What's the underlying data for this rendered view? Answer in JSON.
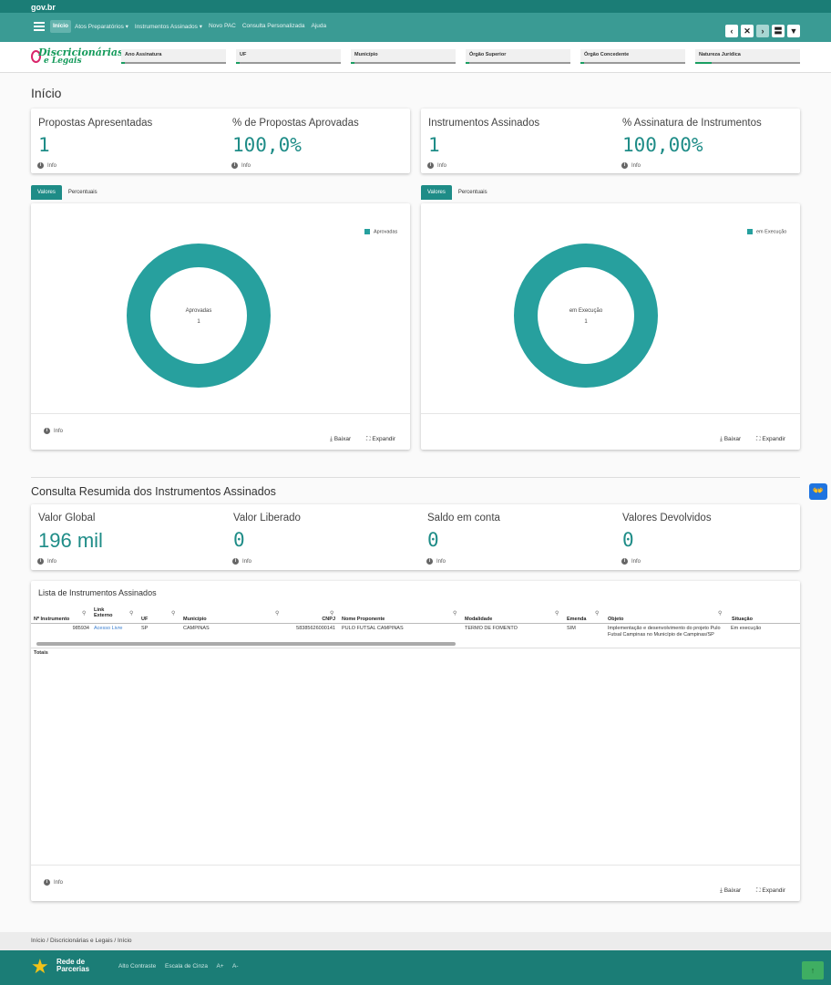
{
  "gov": {
    "logo": "gov.br"
  },
  "nav": {
    "menu": [
      "Início",
      "Atos Preparatórios ▾",
      "Instrumentos Assinados ▾",
      "Novo PAC",
      "Consulta Personalizada",
      "Ajuda"
    ],
    "buttons": [
      "‹",
      "✕",
      "›",
      "〓",
      "▼"
    ]
  },
  "brand": {
    "line1": "Discricionárias",
    "line2": "e Legais"
  },
  "filters": [
    "Ano Assinatura",
    "UF",
    "Município",
    "Órgão Superior",
    "Órgão Concedente",
    "Natureza Jurídica"
  ],
  "page": {
    "title": "Início"
  },
  "kpis1": {
    "propostas_label": "Propostas Apresentadas",
    "propostas_value": "1",
    "aprov_label": "% de Propostas Aprovadas",
    "aprov_value": "100,0%",
    "instr_label": "Instrumentos Assinados",
    "instr_value": "1",
    "assin_label": "% Assinatura de Instrumentos",
    "assin_value": "100,00%",
    "info": "Info"
  },
  "chart_tabs": {
    "valores": "Valores",
    "percentuais": "Percentuais"
  },
  "chart_data": [
    {
      "type": "pie",
      "variant": "donut",
      "categories": [
        "Aprovadas"
      ],
      "values": [
        1
      ],
      "legend": "top-right",
      "center_label": "Aprovadas",
      "center_value": "1"
    },
    {
      "type": "pie",
      "variant": "donut",
      "categories": [
        "em Execução"
      ],
      "values": [
        1
      ],
      "legend": "top-right",
      "center_label": "em Execução",
      "center_value": "1"
    }
  ],
  "chart_footer": {
    "info": "Info",
    "baixar": "Baixar",
    "expandir": "Expandir"
  },
  "summary": {
    "title": "Consulta Resumida dos Instrumentos Assinados",
    "valor_global_label": "Valor Global",
    "valor_global": "196 mil",
    "valor_liberado_label": "Valor Liberado",
    "valor_liberado": "0",
    "saldo_label": "Saldo em conta",
    "saldo": "0",
    "devolvidos_label": "Valores Devolvidos",
    "devolvidos": "0"
  },
  "table": {
    "title": "Lista de Instrumentos Assinados",
    "headers": {
      "num": "Nº Instrumento",
      "link1": "Link",
      "link2": "Externo",
      "uf": "UF",
      "municipio": "Município",
      "cnpj": "CNPJ",
      "proponente": "Nome Proponente",
      "modalidade": "Modalidade",
      "emenda": "Emenda",
      "objeto": "Objeto",
      "situacao": "Situação"
    },
    "row": {
      "num": "985934",
      "link": "Acesso Livre",
      "uf": "SP",
      "municipio": "CAMPINAS",
      "cnpj": "58385626000141",
      "proponente": "PULO FUTSAL CAMPINAS",
      "modalidade": "TERMO DE FOMENTO",
      "emenda": "SIM",
      "objeto": "Implementação e desenvolvimento do projeto Pulo Futsal Campinas no Município de Campinas/SP",
      "situacao": "Em execução"
    },
    "totals": "Totais"
  },
  "breadcrumb": "Início  /  Discricionárias e Legais  /  Início",
  "footer": {
    "rede1": "Rede de",
    "rede2": "Parcerias",
    "links": [
      "Alto Contraste",
      "Escala de Cinza",
      "A+",
      "A-"
    ],
    "top": "↑"
  },
  "accessibility": "👐",
  "colors": {
    "primary": "#1b7d76",
    "nav": "#3a9b94",
    "donut": "#27a09e"
  }
}
